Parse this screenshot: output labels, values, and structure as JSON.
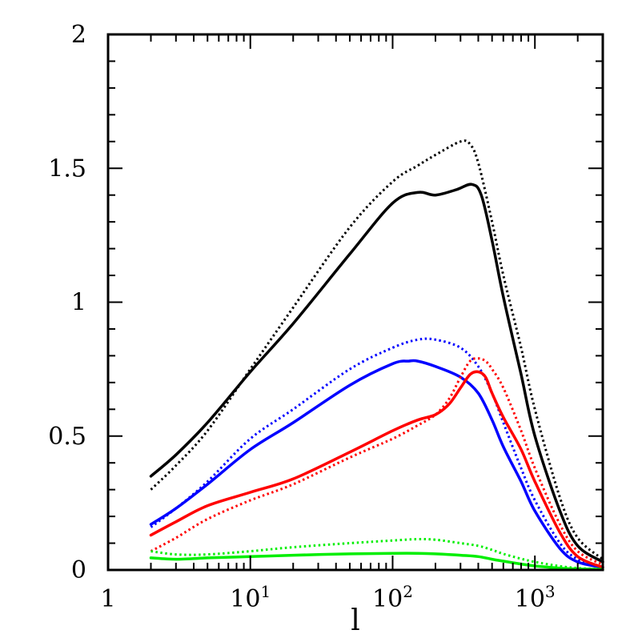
{
  "chart_data": {
    "type": "line",
    "title": "",
    "xlabel": "l",
    "ylabel": "",
    "x_scale": "log",
    "xlim": [
      1,
      3000
    ],
    "ylim": [
      0,
      2
    ],
    "grid": false,
    "legend": "none",
    "x_ticks": [
      {
        "value": 1,
        "base": "1",
        "exp": ""
      },
      {
        "value": 10,
        "base": "10",
        "exp": "1"
      },
      {
        "value": 100,
        "base": "10",
        "exp": "2"
      },
      {
        "value": 1000,
        "base": "10",
        "exp": "3"
      }
    ],
    "y_ticks": [
      {
        "value": 0,
        "label": "0"
      },
      {
        "value": 0.5,
        "label": "0.5"
      },
      {
        "value": 1,
        "label": "1"
      },
      {
        "value": 1.5,
        "label": "1.5"
      },
      {
        "value": 2,
        "label": "2"
      }
    ],
    "series": [
      {
        "color": "#000000",
        "style": "solid",
        "x": [
          2,
          3,
          5,
          10,
          20,
          50,
          100,
          150,
          200,
          280,
          360,
          420,
          500,
          600,
          800,
          1000,
          1500,
          2000,
          3000
        ],
        "y": [
          0.35,
          0.43,
          0.55,
          0.74,
          0.92,
          1.18,
          1.37,
          1.41,
          1.4,
          1.42,
          1.44,
          1.4,
          1.23,
          1.02,
          0.73,
          0.5,
          0.22,
          0.09,
          0.03
        ]
      },
      {
        "color": "#000000",
        "style": "dotted",
        "x": [
          2,
          3,
          5,
          10,
          20,
          50,
          100,
          150,
          200,
          300,
          350,
          400,
          500,
          600,
          800,
          1000,
          1500,
          2000,
          3000
        ],
        "y": [
          0.3,
          0.39,
          0.52,
          0.75,
          0.98,
          1.28,
          1.45,
          1.51,
          1.55,
          1.6,
          1.59,
          1.52,
          1.3,
          1.1,
          0.83,
          0.6,
          0.27,
          0.12,
          0.04
        ]
      },
      {
        "color": "#0000ff",
        "style": "solid",
        "x": [
          2,
          3,
          5,
          10,
          20,
          50,
          100,
          130,
          150,
          200,
          300,
          400,
          500,
          600,
          800,
          1000,
          1500,
          2000,
          3000
        ],
        "y": [
          0.17,
          0.23,
          0.32,
          0.45,
          0.55,
          0.69,
          0.77,
          0.78,
          0.78,
          0.76,
          0.72,
          0.66,
          0.56,
          0.46,
          0.33,
          0.22,
          0.08,
          0.03,
          0.01
        ]
      },
      {
        "color": "#0000ff",
        "style": "dotted",
        "x": [
          2,
          3,
          5,
          10,
          20,
          50,
          100,
          150,
          200,
          300,
          400,
          500,
          600,
          800,
          1000,
          1500,
          2000,
          3000
        ],
        "y": [
          0.16,
          0.23,
          0.33,
          0.49,
          0.6,
          0.75,
          0.83,
          0.86,
          0.86,
          0.83,
          0.76,
          0.66,
          0.55,
          0.38,
          0.26,
          0.1,
          0.04,
          0.01
        ]
      },
      {
        "color": "#ff0000",
        "style": "solid",
        "x": [
          2,
          3,
          5,
          10,
          20,
          50,
          100,
          150,
          200,
          250,
          300,
          350,
          400,
          450,
          500,
          600,
          800,
          1000,
          1500,
          2000,
          3000
        ],
        "y": [
          0.13,
          0.18,
          0.24,
          0.29,
          0.34,
          0.44,
          0.52,
          0.56,
          0.58,
          0.62,
          0.68,
          0.73,
          0.74,
          0.72,
          0.66,
          0.57,
          0.45,
          0.33,
          0.14,
          0.05,
          0.01
        ]
      },
      {
        "color": "#ff0000",
        "style": "dotted",
        "x": [
          2,
          3,
          5,
          10,
          20,
          50,
          100,
          150,
          200,
          250,
          300,
          350,
          400,
          450,
          500,
          600,
          800,
          1000,
          1500,
          2000,
          3000
        ],
        "y": [
          0.07,
          0.12,
          0.19,
          0.26,
          0.32,
          0.42,
          0.49,
          0.54,
          0.58,
          0.64,
          0.72,
          0.78,
          0.79,
          0.78,
          0.75,
          0.68,
          0.52,
          0.38,
          0.17,
          0.07,
          0.02
        ]
      },
      {
        "color": "#00ee00",
        "style": "solid",
        "x": [
          2,
          3,
          5,
          10,
          20,
          50,
          100,
          150,
          200,
          300,
          400,
          500,
          600,
          800,
          1000,
          1500,
          2000,
          3000
        ],
        "y": [
          0.045,
          0.04,
          0.045,
          0.05,
          0.055,
          0.06,
          0.062,
          0.062,
          0.06,
          0.055,
          0.05,
          0.04,
          0.033,
          0.022,
          0.015,
          0.007,
          0.004,
          0.002
        ]
      },
      {
        "color": "#00ee00",
        "style": "dotted",
        "x": [
          2,
          3,
          5,
          10,
          20,
          50,
          100,
          150,
          200,
          300,
          400,
          500,
          600,
          800,
          1000,
          1500,
          2000,
          3000
        ],
        "y": [
          0.07,
          0.058,
          0.058,
          0.07,
          0.085,
          0.1,
          0.11,
          0.115,
          0.113,
          0.1,
          0.09,
          0.075,
          0.06,
          0.042,
          0.03,
          0.014,
          0.007,
          0.003
        ]
      }
    ]
  }
}
